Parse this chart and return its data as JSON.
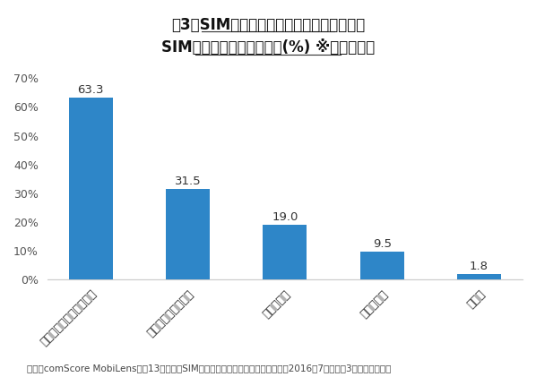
{
  "title_line1": "図3：SIMフリーのスマートフォン使用者が",
  "title_line2": "SIMフリー携帯を持つ理由(%) ※複数回答可",
  "categories": [
    "月額の利用料金を減らす",
    "長期の契約を避ける",
    "わからない",
    "海外で使う",
    "その他"
  ],
  "values": [
    63.3,
    31.5,
    19.0,
    9.5,
    1.8
  ],
  "bar_color": "#2E86C8",
  "ylim": [
    0,
    70
  ],
  "yticks": [
    0,
    10,
    20,
    30,
    40,
    50,
    60,
    70
  ],
  "ytick_labels": [
    "0%",
    "10%",
    "20%",
    "30%",
    "40%",
    "50%",
    "60%",
    "70%"
  ],
  "footnote": "出典：comScore MobiLens、全13歳以上のSIMフリーのスマートフォンユーザー、2016年7月までの3ヶ月平均、日本",
  "background_color": "#ffffff",
  "title_fontsize": 12,
  "label_fontsize": 9,
  "footnote_fontsize": 7.5,
  "value_fontsize": 9.5
}
